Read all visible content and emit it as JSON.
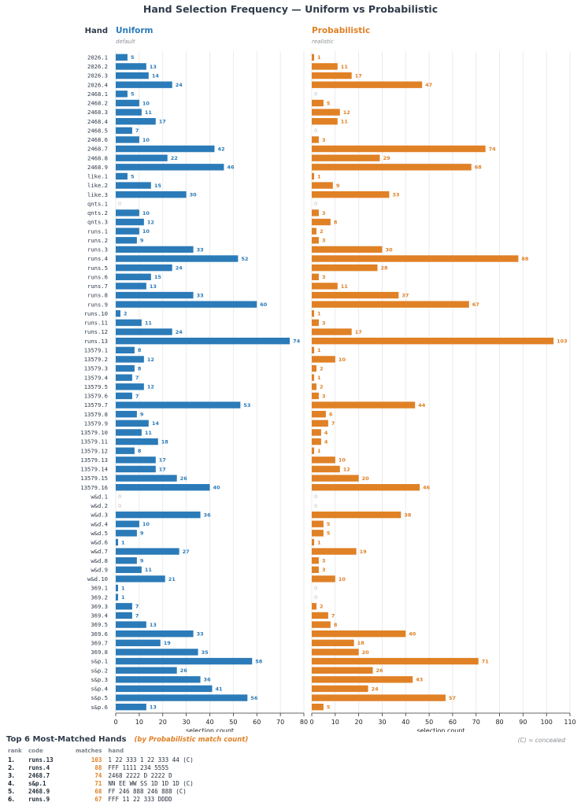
{
  "title": "Hand Selection Frequency — Uniform vs Probabilistic",
  "hand_header": "Hand",
  "colors": {
    "uniform": "#2b7bb9",
    "probabilistic": "#e08126",
    "zero": "#b5b8bc",
    "grid": "#e6e6e6"
  },
  "chart_data": {
    "type": "bar",
    "orientation": "horizontal",
    "categories": [
      "2026.1",
      "2026.2",
      "2026.3",
      "2026.4",
      "2468.1",
      "2468.2",
      "2468.3",
      "2468.4",
      "2468.5",
      "2468.6",
      "2468.7",
      "2468.8",
      "2468.9",
      "like.1",
      "like.2",
      "like.3",
      "qnts.1",
      "qnts.2",
      "qnts.3",
      "runs.1",
      "runs.2",
      "runs.3",
      "runs.4",
      "runs.5",
      "runs.6",
      "runs.7",
      "runs.8",
      "runs.9",
      "runs.10",
      "runs.11",
      "runs.12",
      "runs.13",
      "13579.1",
      "13579.2",
      "13579.3",
      "13579.4",
      "13579.5",
      "13579.6",
      "13579.7",
      "13579.8",
      "13579.9",
      "13579.10",
      "13579.11",
      "13579.12",
      "13579.13",
      "13579.14",
      "13579.15",
      "13579.16",
      "w&d.1",
      "w&d.2",
      "w&d.3",
      "w&d.4",
      "w&d.5",
      "w&d.6",
      "w&d.7",
      "w&d.8",
      "w&d.9",
      "w&d.10",
      "369.1",
      "369.2",
      "369.3",
      "369.4",
      "369.5",
      "369.6",
      "369.7",
      "369.8",
      "s&p.1",
      "s&p.2",
      "s&p.3",
      "s&p.4",
      "s&p.5",
      "s&p.6"
    ],
    "panels": [
      {
        "name": "Uniform",
        "subtitle": "default",
        "xlabel": "selection count",
        "xlim": [
          0,
          80
        ],
        "xticks": [
          0,
          10,
          20,
          30,
          40,
          50,
          60,
          70,
          80
        ],
        "values": [
          5,
          13,
          14,
          24,
          5,
          10,
          11,
          17,
          7,
          10,
          42,
          22,
          46,
          5,
          15,
          30,
          0,
          10,
          12,
          10,
          9,
          33,
          52,
          24,
          15,
          13,
          33,
          60,
          2,
          11,
          24,
          74,
          8,
          12,
          8,
          7,
          12,
          7,
          53,
          9,
          14,
          11,
          18,
          8,
          17,
          17,
          26,
          40,
          0,
          0,
          36,
          10,
          9,
          1,
          27,
          9,
          11,
          21,
          1,
          1,
          7,
          7,
          13,
          33,
          19,
          35,
          58,
          26,
          36,
          41,
          56,
          13
        ]
      },
      {
        "name": "Probabilistic",
        "subtitle": "realistic",
        "xlabel": "selection count",
        "xlim": [
          0,
          110
        ],
        "xticks": [
          0,
          10,
          20,
          30,
          40,
          50,
          60,
          70,
          80,
          90,
          100,
          110
        ],
        "values": [
          1,
          11,
          17,
          47,
          0,
          5,
          12,
          11,
          0,
          3,
          74,
          29,
          68,
          1,
          9,
          33,
          0,
          3,
          8,
          2,
          3,
          30,
          88,
          28,
          3,
          11,
          37,
          67,
          1,
          3,
          17,
          103,
          1,
          10,
          2,
          1,
          2,
          3,
          44,
          6,
          7,
          4,
          4,
          1,
          10,
          12,
          20,
          46,
          0,
          0,
          38,
          5,
          5,
          1,
          19,
          3,
          3,
          10,
          0,
          0,
          2,
          7,
          8,
          40,
          18,
          20,
          71,
          26,
          43,
          24,
          57,
          5
        ]
      }
    ],
    "grid": true
  },
  "top_hands": {
    "heading": "Top 6 Most-Matched Hands",
    "subheading": "(by Probabilistic match count)",
    "note": "(C) = concealed",
    "columns": [
      "rank",
      "code",
      "matches",
      "hand"
    ],
    "rows": [
      {
        "rank": "1.",
        "code": "runs.13",
        "matches": "103",
        "hand": "1 22 333 1 22 333 44  (C)"
      },
      {
        "rank": "2.",
        "code": "runs.4",
        "matches": "88",
        "hand": "FFF 1111 234 5555"
      },
      {
        "rank": "3.",
        "code": "2468.7",
        "matches": "74",
        "hand": "2468 2222 D 2222 D"
      },
      {
        "rank": "4.",
        "code": "s&p.1",
        "matches": "71",
        "hand": "NN EE WW SS 1D 1D 1D  (C)"
      },
      {
        "rank": "5.",
        "code": "2468.9",
        "matches": "68",
        "hand": "FF 246 888 246 888  (C)"
      },
      {
        "rank": "6.",
        "code": "runs.9",
        "matches": "67",
        "hand": "FFF 11 22 333 DDDD"
      }
    ]
  }
}
